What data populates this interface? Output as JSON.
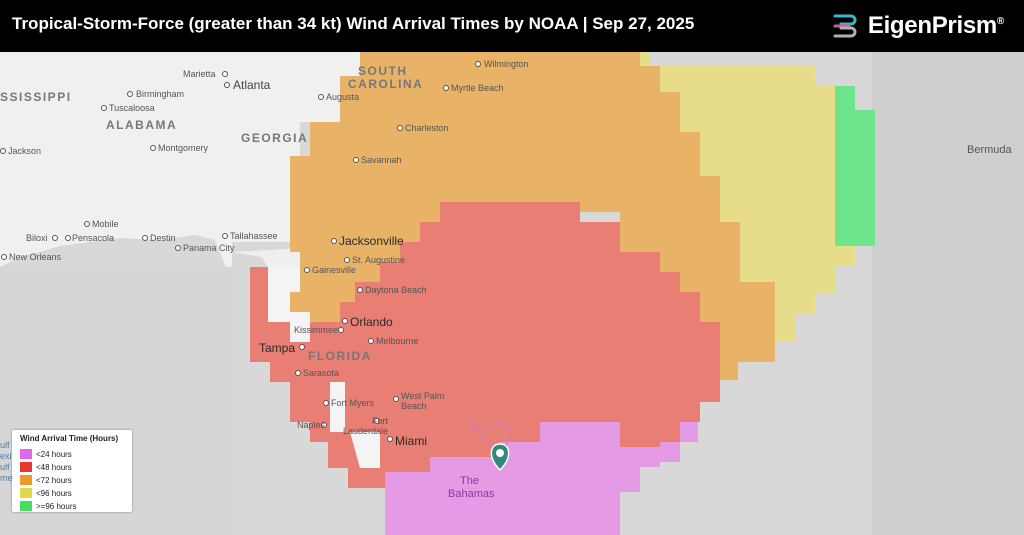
{
  "header": {
    "title": "Tropical-Storm-Force (greater than 34 kt) Wind Arrival Times by NOAA  | Sep 27, 2025",
    "brand": "EigenPrism",
    "brand_mark": "®"
  },
  "map": {
    "states": {
      "mississippi": "SSISSIPPI",
      "alabama": "ALABAMA",
      "georgia": "GEORGIA",
      "south_carolina_1": "SOUTH",
      "south_carolina_2": "CAROLINA",
      "florida": "FLORIDA"
    },
    "cities": {
      "marietta": "Marietta",
      "atlanta": "Atlanta",
      "birmingham": "Birmingham",
      "tuscaloosa": "Tuscaloosa",
      "augusta": "Augusta",
      "wilmington": "Wilmington",
      "myrtle_beach": "Myrtle Beach",
      "charleston": "Charleston",
      "jackson": "Jackson",
      "montgomery": "Montgomery",
      "savannah": "Savannah",
      "mobile": "Mobile",
      "biloxi": "Biloxi",
      "pensacola": "Pensacola",
      "destin": "Destin",
      "panama_city": "Panama City",
      "tallahassee": "Tallahassee",
      "jacksonville": "Jacksonville",
      "new_orleans": "New Orleans",
      "st_augustine": "St. Augustine",
      "gainesville": "Gainesville",
      "daytona_beach": "Daytona Beach",
      "orlando": "Orlando",
      "kissimmee": "Kissimmee",
      "tampa": "Tampa",
      "melbourne": "Melbourne",
      "sarasota": "Sarasota",
      "fort_myers": "Fort Myers",
      "west_palm_1": "West Palm",
      "west_palm_2": "Beach",
      "naples": "Naples",
      "fort_lauderdale_1": "Fort",
      "fort_lauderdale_2": "Lauderdale",
      "miami": "Miami",
      "the_bahamas_1": "The",
      "the_bahamas_2": "Bahamas",
      "bermuda": "Bermuda"
    },
    "gulf_fragments": [
      "ulf o",
      "exic",
      "ulf",
      "meri"
    ]
  },
  "legend": {
    "title": "Wind Arrival Time (Hours)",
    "items": [
      {
        "label": "<24 hours",
        "color": "#e468e4"
      },
      {
        "label": "<48 hours",
        "color": "#e8372f"
      },
      {
        "label": "<72 hours",
        "color": "#ec9a2b"
      },
      {
        "label": "<96 hours",
        "color": "#e4d84a"
      },
      {
        "label": ">=96 hours",
        "color": "#44df5e"
      }
    ]
  },
  "colors": {
    "lt24": "#e49ae4",
    "lt48": "#e97e74",
    "lt72": "#e8b366",
    "lt96": "#e6dc8a",
    "ge96": "#6fe58b",
    "storm_marker": "#2f8a7a"
  }
}
